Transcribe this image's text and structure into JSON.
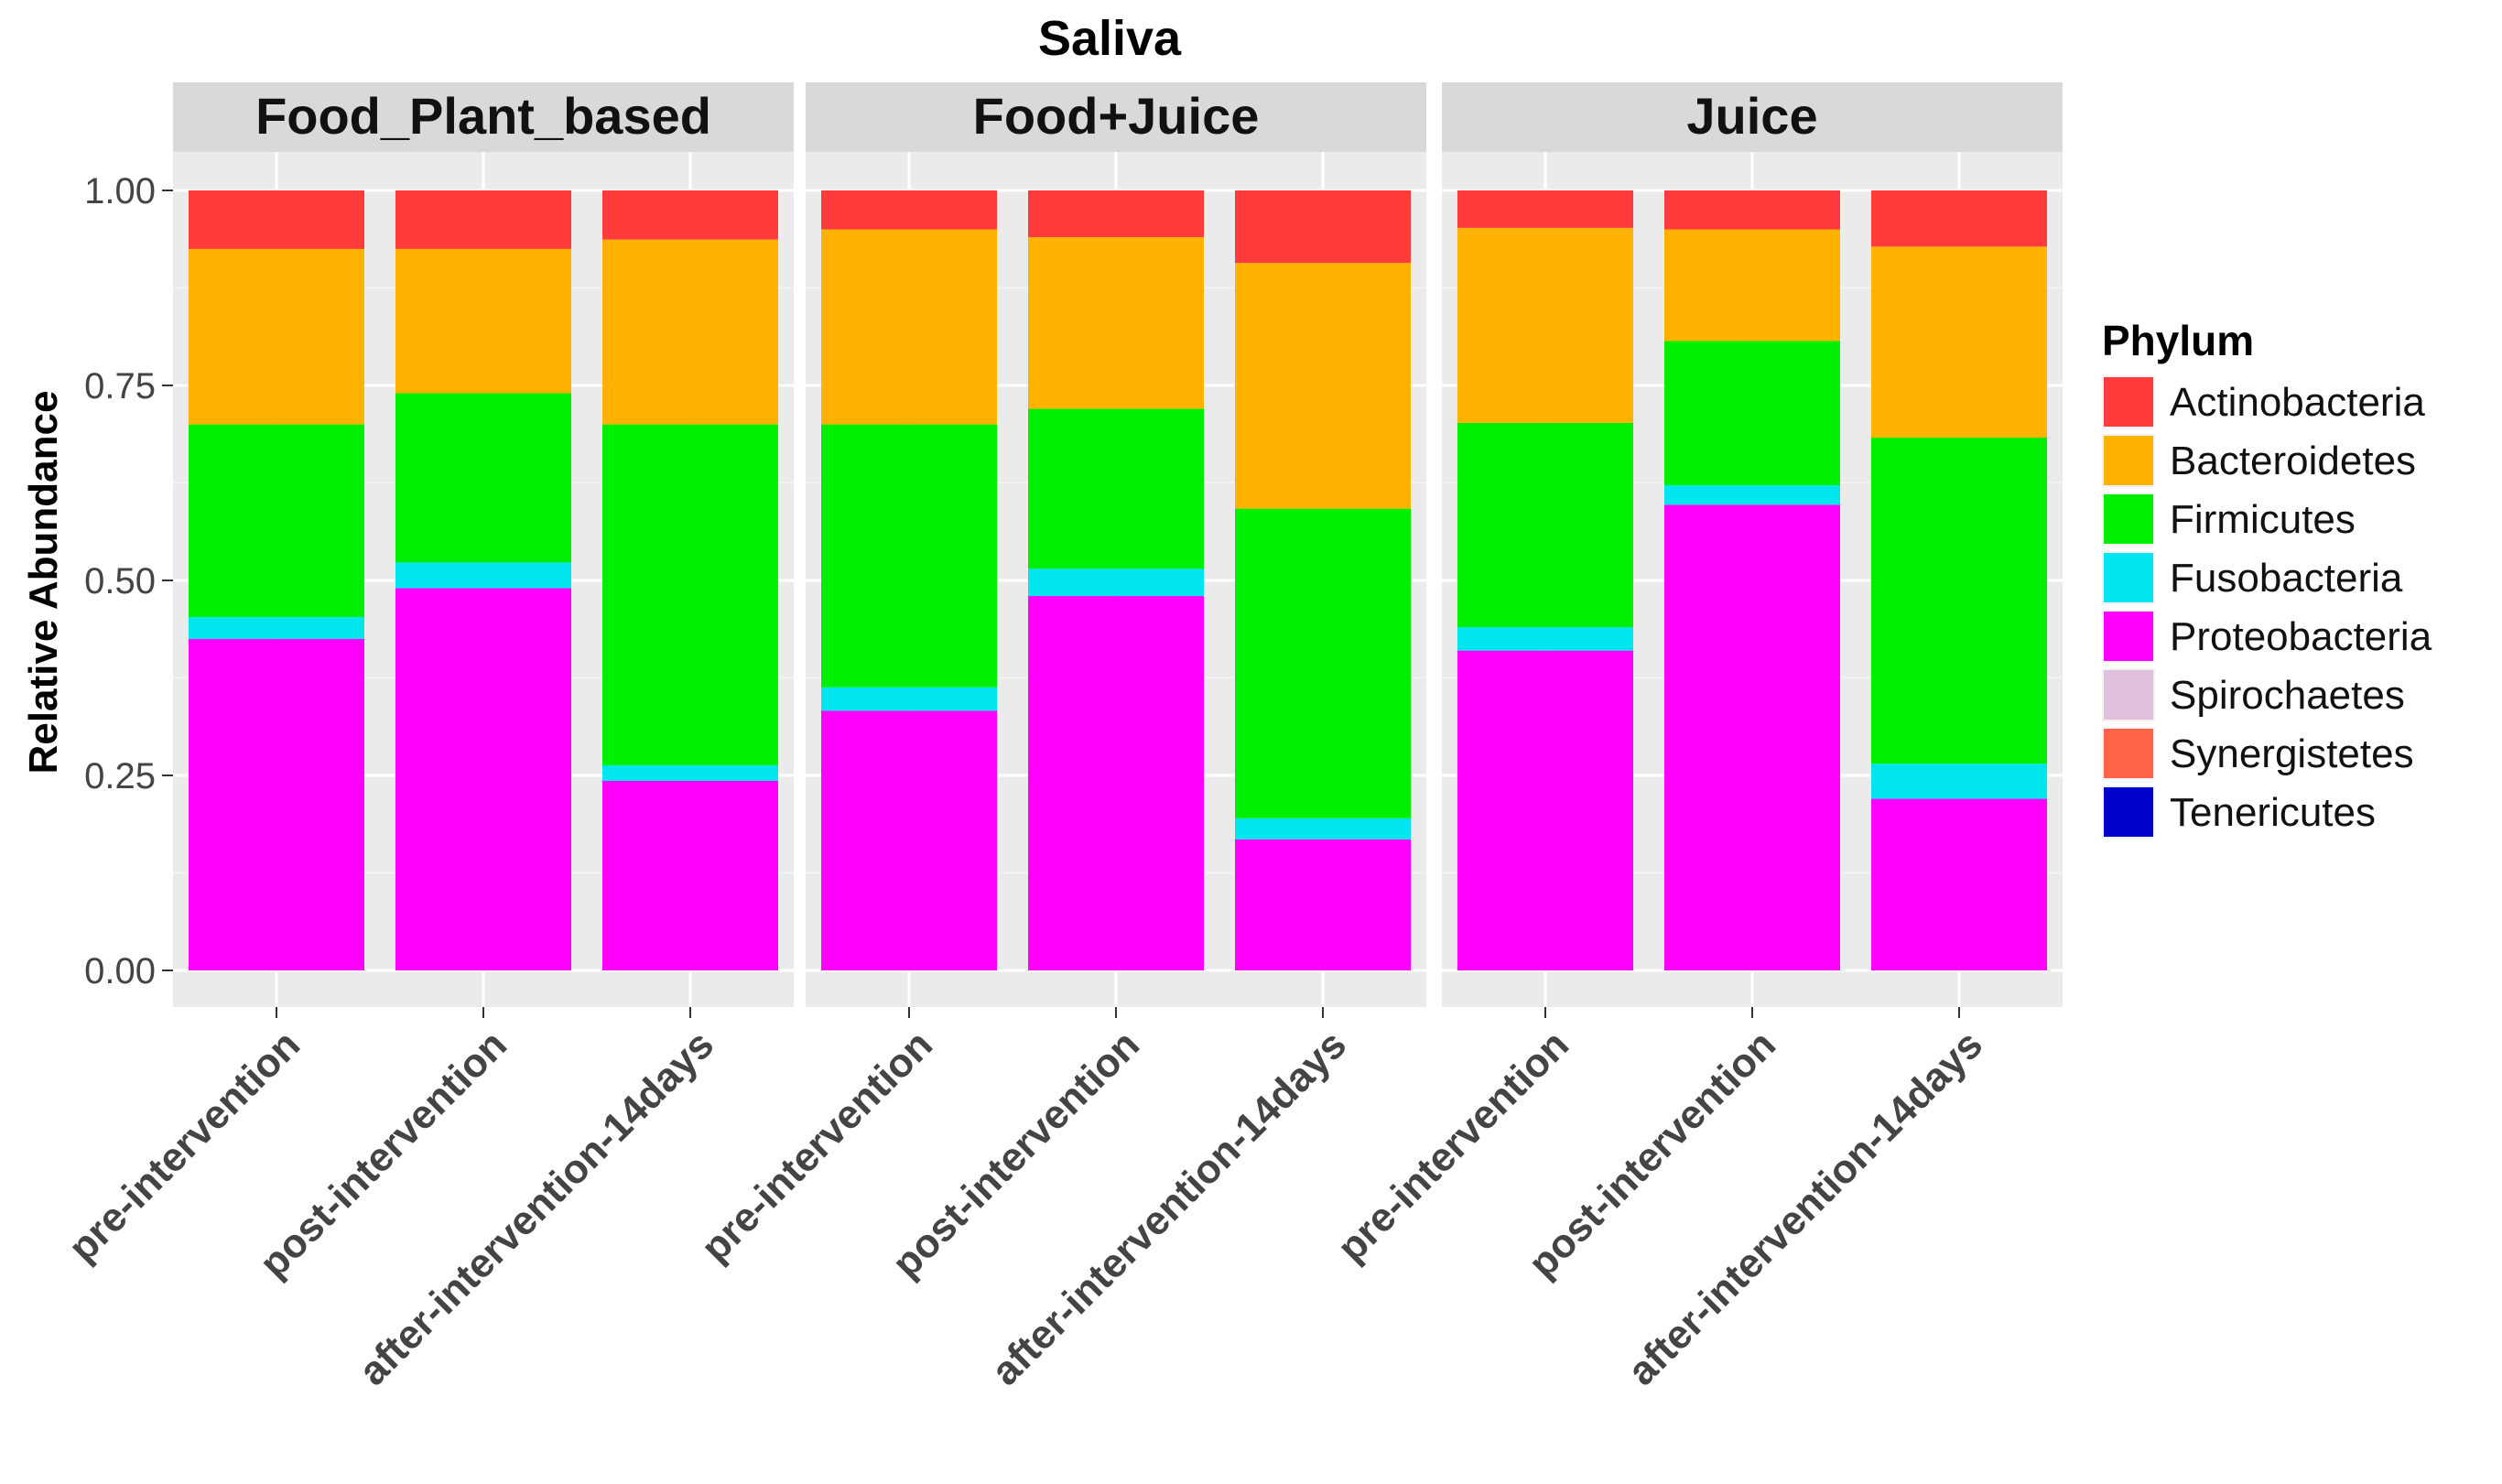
{
  "chart_data": {
    "type": "bar",
    "stacked": true,
    "title": "Saliva",
    "ylabel": "Relative Abundance",
    "xlabel": "",
    "ylim": [
      0,
      1
    ],
    "yticks": [
      "0.00",
      "0.25",
      "0.50",
      "0.75",
      "1.00"
    ],
    "ytick_values": [
      0,
      0.25,
      0.5,
      0.75,
      1.0
    ],
    "categories": [
      "pre-intervention",
      "post-intervention",
      "after-intervention-14days"
    ],
    "legend": {
      "title": "Phylum",
      "position": "right",
      "entries": [
        {
          "name": "Actinobacteria",
          "color": "#FF3B3B"
        },
        {
          "name": "Bacteroidetes",
          "color": "#FFB300"
        },
        {
          "name": "Firmicutes",
          "color": "#00EE00"
        },
        {
          "name": "Fusobacteria",
          "color": "#00E5EE"
        },
        {
          "name": "Proteobacteria",
          "color": "#FF00FF"
        },
        {
          "name": "Spirochaetes",
          "color": "#E0C0DC"
        },
        {
          "name": "Synergistetes",
          "color": "#FF6347"
        },
        {
          "name": "Tenericutes",
          "color": "#0000CD"
        }
      ]
    },
    "stack_order": [
      "Proteobacteria",
      "Fusobacteria",
      "Firmicutes",
      "Bacteroidetes",
      "Actinobacteria",
      "Spirochaetes",
      "Synergistetes",
      "Tenericutes"
    ],
    "panels": [
      {
        "label": "Food_Plant_based",
        "bars": [
          {
            "category": "pre-intervention",
            "values": {
              "Proteobacteria": 0.425,
              "Fusobacteria": 0.028,
              "Firmicutes": 0.247,
              "Bacteroidetes": 0.225,
              "Actinobacteria": 0.075,
              "Spirochaetes": 0,
              "Synergistetes": 0,
              "Tenericutes": 0
            }
          },
          {
            "category": "post-intervention",
            "values": {
              "Proteobacteria": 0.49,
              "Fusobacteria": 0.033,
              "Firmicutes": 0.217,
              "Bacteroidetes": 0.185,
              "Actinobacteria": 0.075,
              "Spirochaetes": 0,
              "Synergistetes": 0,
              "Tenericutes": 0
            }
          },
          {
            "category": "after-intervention-14days",
            "values": {
              "Proteobacteria": 0.243,
              "Fusobacteria": 0.02,
              "Firmicutes": 0.437,
              "Bacteroidetes": 0.237,
              "Actinobacteria": 0.063,
              "Spirochaetes": 0,
              "Synergistetes": 0,
              "Tenericutes": 0
            }
          }
        ]
      },
      {
        "label": "Food+Juice",
        "bars": [
          {
            "category": "pre-intervention",
            "values": {
              "Proteobacteria": 0.333,
              "Fusobacteria": 0.03,
              "Firmicutes": 0.337,
              "Bacteroidetes": 0.25,
              "Actinobacteria": 0.05,
              "Spirochaetes": 0,
              "Synergistetes": 0,
              "Tenericutes": 0
            }
          },
          {
            "category": "post-intervention",
            "values": {
              "Proteobacteria": 0.48,
              "Fusobacteria": 0.035,
              "Firmicutes": 0.205,
              "Bacteroidetes": 0.22,
              "Actinobacteria": 0.06,
              "Spirochaetes": 0,
              "Synergistetes": 0,
              "Tenericutes": 0
            }
          },
          {
            "category": "after-intervention-14days",
            "values": {
              "Proteobacteria": 0.168,
              "Fusobacteria": 0.027,
              "Firmicutes": 0.397,
              "Bacteroidetes": 0.315,
              "Actinobacteria": 0.093,
              "Spirochaetes": 0,
              "Synergistetes": 0,
              "Tenericutes": 0
            }
          }
        ]
      },
      {
        "label": "Juice",
        "bars": [
          {
            "category": "pre-intervention",
            "values": {
              "Proteobacteria": 0.41,
              "Fusobacteria": 0.03,
              "Firmicutes": 0.262,
              "Bacteroidetes": 0.25,
              "Actinobacteria": 0.048,
              "Spirochaetes": 0,
              "Synergistetes": 0,
              "Tenericutes": 0
            }
          },
          {
            "category": "post-intervention",
            "values": {
              "Proteobacteria": 0.597,
              "Fusobacteria": 0.025,
              "Firmicutes": 0.185,
              "Bacteroidetes": 0.143,
              "Actinobacteria": 0.05,
              "Spirochaetes": 0,
              "Synergistetes": 0,
              "Tenericutes": 0
            }
          },
          {
            "category": "after-intervention-14days",
            "values": {
              "Proteobacteria": 0.22,
              "Fusobacteria": 0.045,
              "Firmicutes": 0.418,
              "Bacteroidetes": 0.245,
              "Actinobacteria": 0.072,
              "Spirochaetes": 0,
              "Synergistetes": 0,
              "Tenericutes": 0
            }
          }
        ]
      }
    ]
  }
}
